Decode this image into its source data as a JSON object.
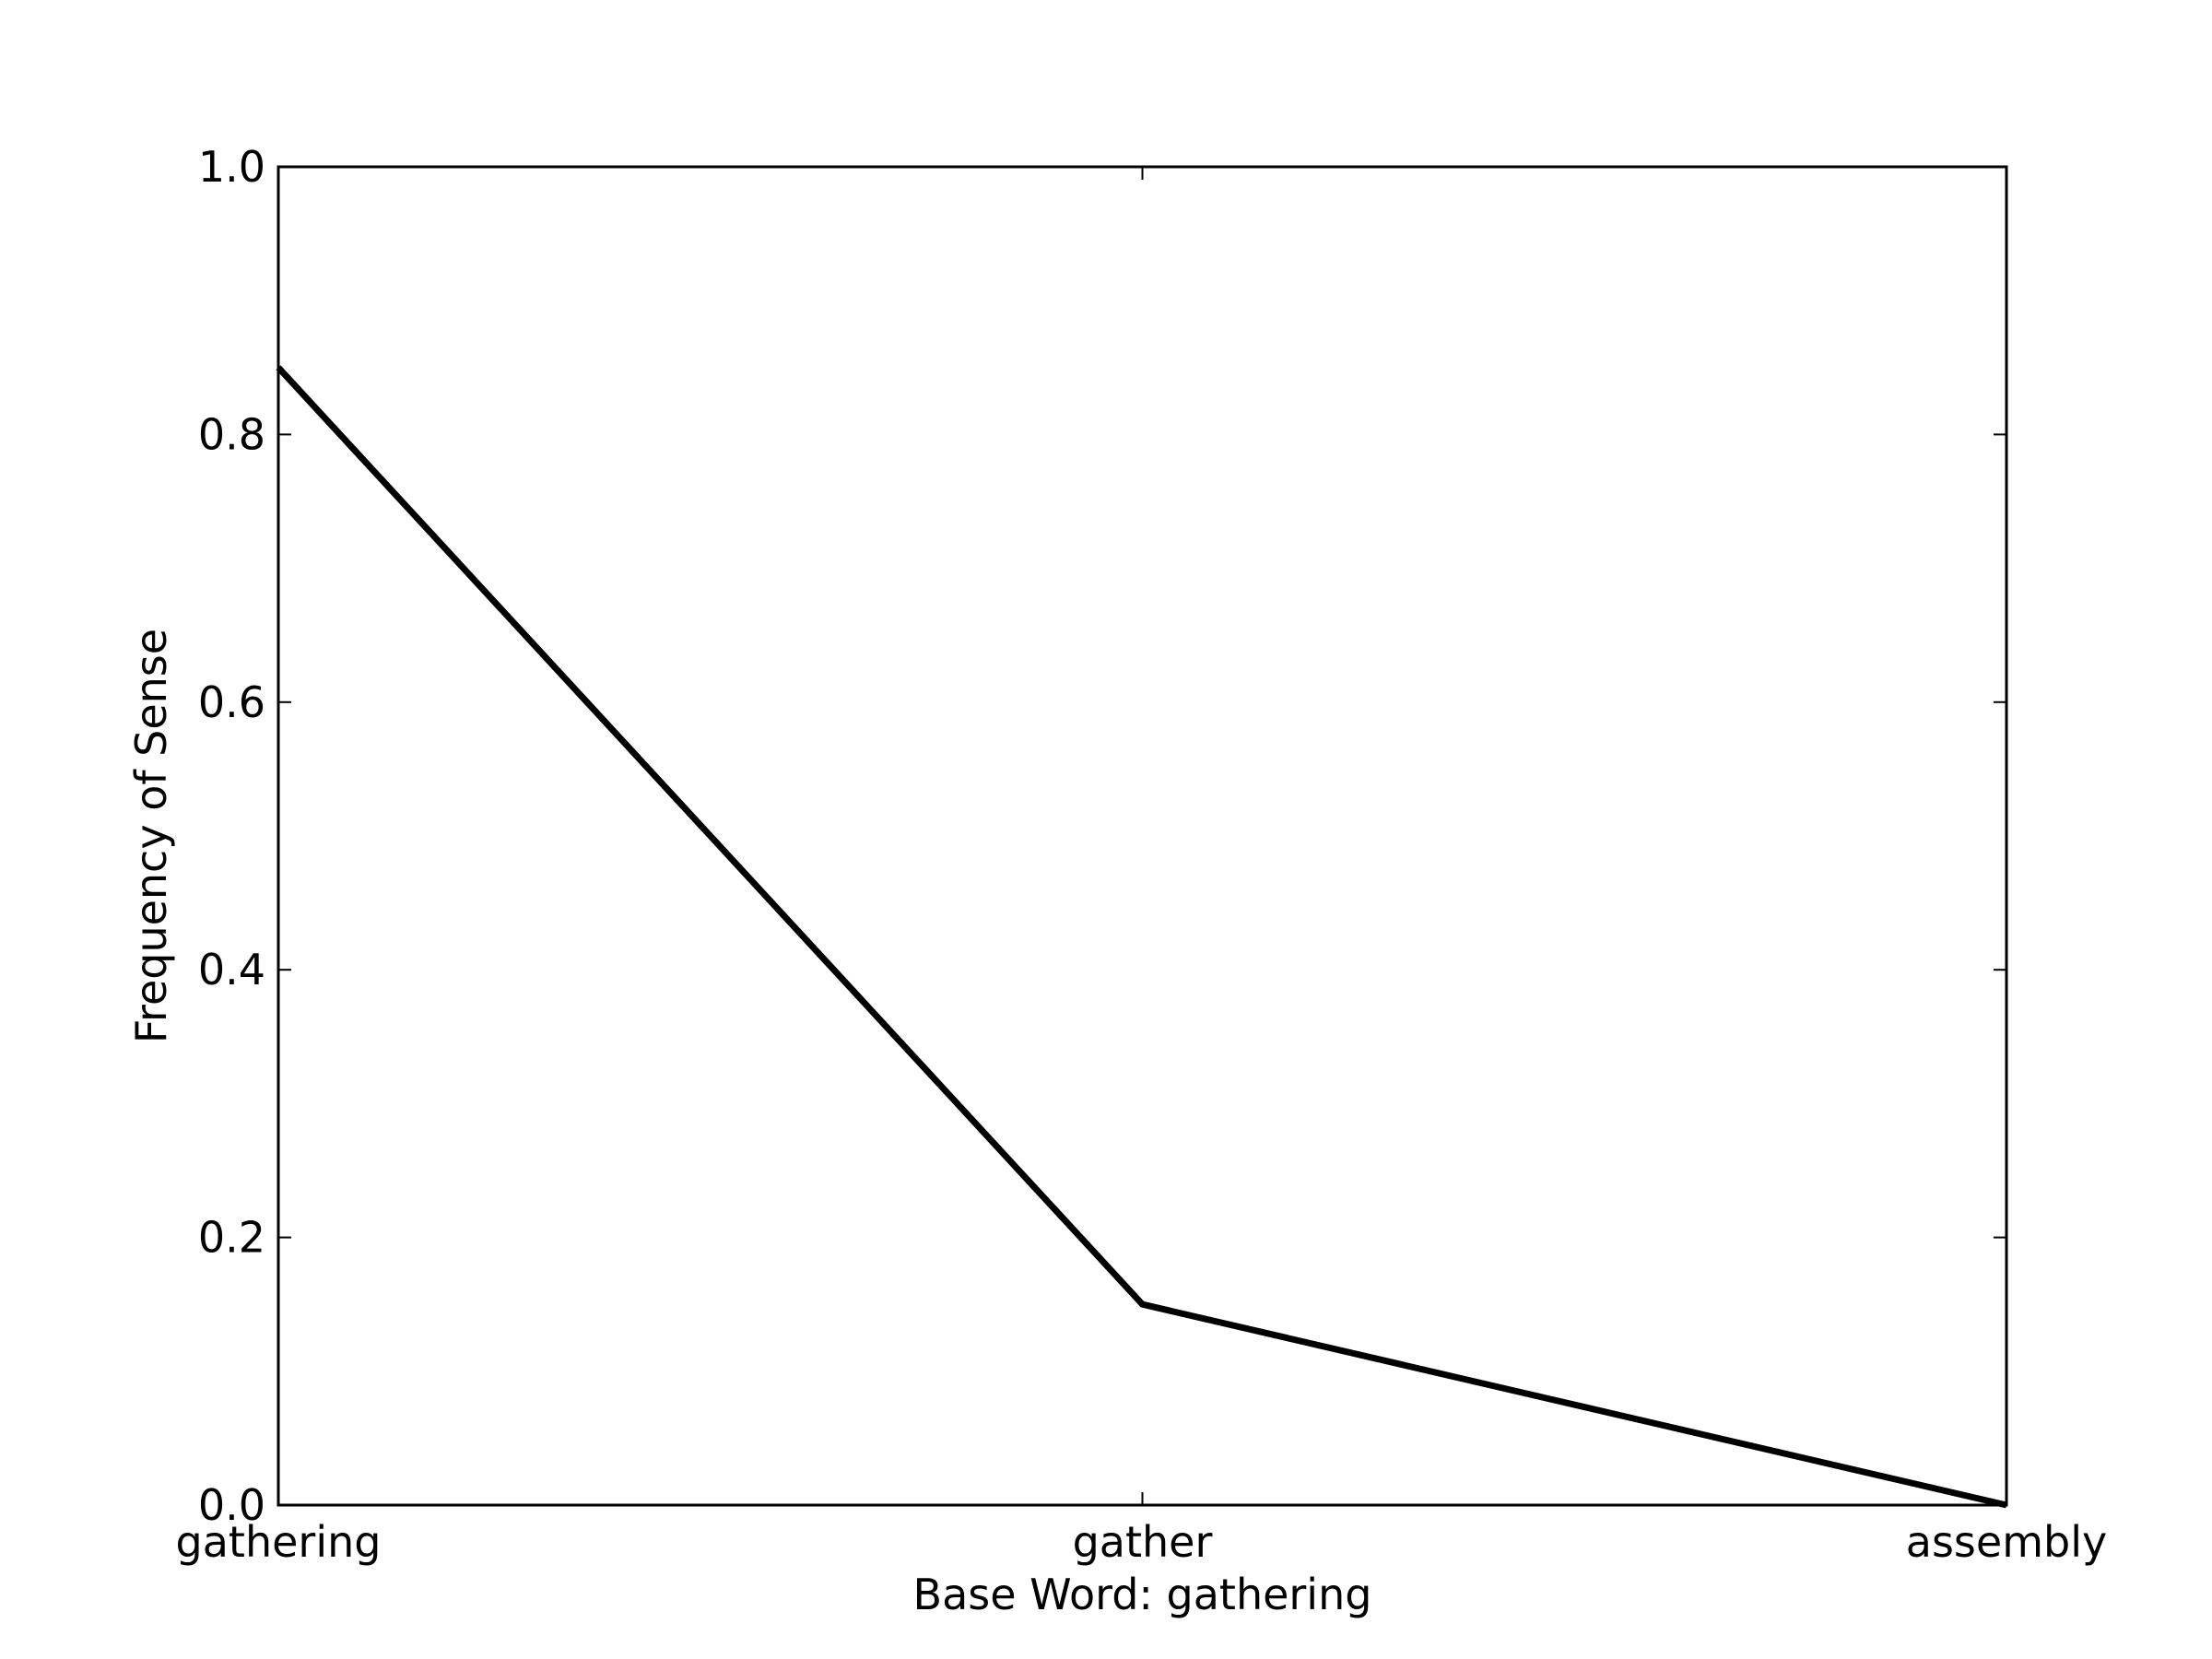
{
  "chart_data": {
    "type": "line",
    "title": "",
    "xlabel": "Base Word: gathering",
    "ylabel": "Frequency of Sense",
    "categories": [
      "gathering",
      "gather",
      "assembly"
    ],
    "series": [
      {
        "values": [
          0.85,
          0.15,
          0.0
        ]
      }
    ],
    "ylim": [
      0.0,
      1.0
    ],
    "yticks": [
      0.0,
      0.2,
      0.4,
      0.6,
      0.8,
      1.0
    ],
    "ytick_labels": [
      "0.0",
      "0.2",
      "0.4",
      "0.6",
      "0.8",
      "1.0"
    ],
    "grid": false,
    "legend": "none",
    "line_color": "#000000"
  }
}
